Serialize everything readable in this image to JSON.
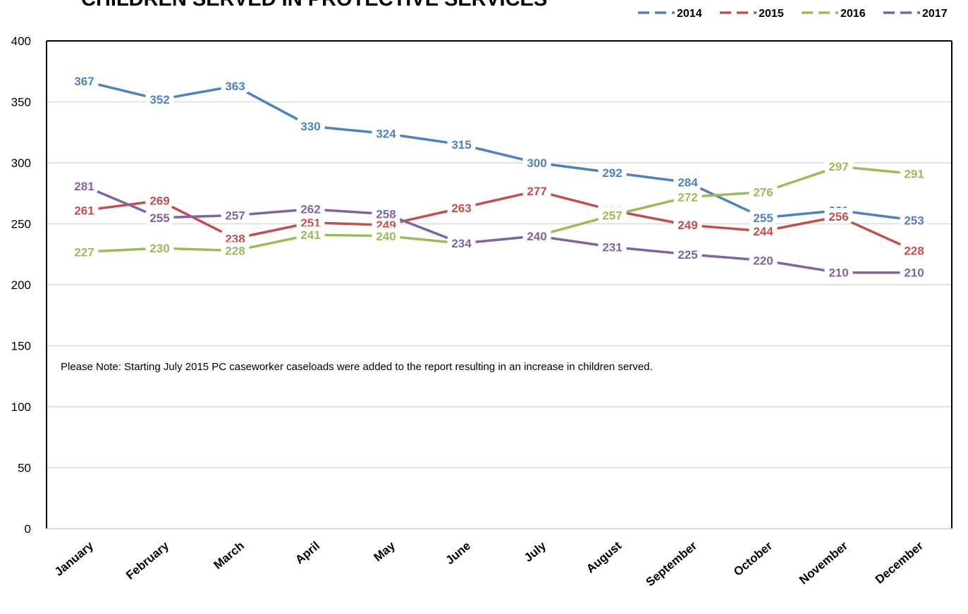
{
  "chart_data": {
    "type": "line",
    "title": "CHILDREN SERVED IN PROTECTIVE SERVICES",
    "categories": [
      "January",
      "February",
      "March",
      "April",
      "May",
      "June",
      "July",
      "August",
      "September",
      "October",
      "November",
      "December"
    ],
    "ylim": [
      0,
      400
    ],
    "yticks": [
      0,
      50,
      100,
      150,
      200,
      250,
      300,
      350,
      400
    ],
    "grid": true,
    "legend_position": "top-right",
    "series": [
      {
        "name": "2014",
        "color": "#4F81BD",
        "values": [
          367,
          352,
          363,
          330,
          324,
          315,
          300,
          292,
          284,
          255,
          261,
          253
        ]
      },
      {
        "name": "2015",
        "color": "#C0504D",
        "values": [
          261,
          269,
          238,
          251,
          249,
          263,
          277,
          261,
          249,
          244,
          256,
          228
        ]
      },
      {
        "name": "2016",
        "color": "#9BBB59",
        "values": [
          227,
          230,
          228,
          241,
          240,
          234,
          240,
          257,
          272,
          276,
          297,
          291
        ]
      },
      {
        "name": "2017",
        "color": "#8064A2",
        "values": [
          281,
          255,
          257,
          262,
          258,
          234,
          240,
          231,
          225,
          220,
          210,
          210
        ]
      }
    ],
    "annotation": "Please Note: Starting  July 2015 PC caseworker caseloads were added to the report resulting in an increase in children served."
  }
}
